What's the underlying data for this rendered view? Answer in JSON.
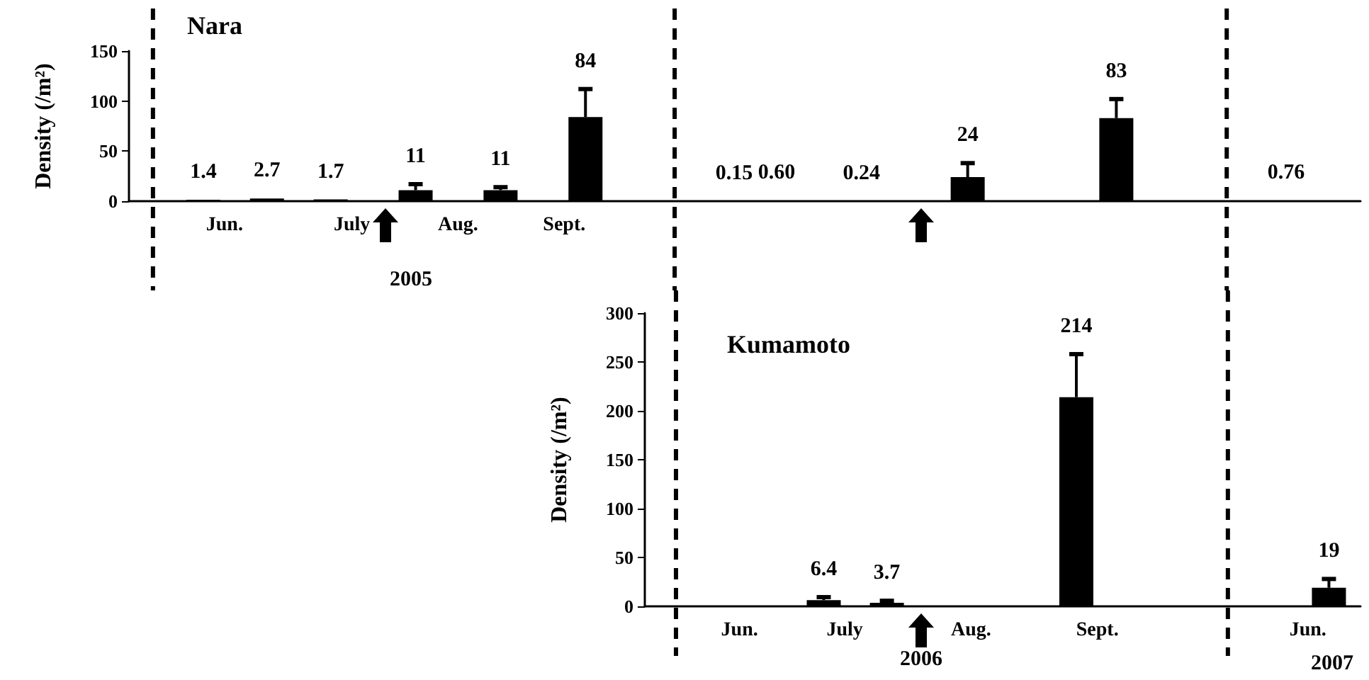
{
  "chart_data": [
    {
      "type": "bar",
      "title": "Nara",
      "ylabel": "Density (/m²)",
      "color": "#000000",
      "categories": [
        null,
        null,
        null,
        null,
        "Jun.",
        null,
        null,
        null,
        null,
        null,
        "July",
        null,
        null,
        null,
        null,
        "Aug.",
        null,
        null,
        null,
        null,
        "Sept.",
        null,
        null,
        null,
        null,
        null,
        null,
        null,
        null,
        null,
        null,
        null,
        null,
        null,
        null,
        null,
        null,
        null,
        null,
        null,
        null,
        null,
        null,
        null,
        null,
        null,
        null,
        null,
        null,
        null,
        null,
        null,
        null,
        null,
        null,
        null,
        null,
        null
      ],
      "values": [
        null,
        null,
        null,
        1.4,
        null,
        null,
        2.7,
        null,
        null,
        1.7,
        null,
        null,
        null,
        11,
        null,
        null,
        null,
        11,
        null,
        null,
        null,
        84,
        null,
        null,
        null,
        null,
        null,
        null,
        0.15,
        null,
        0.6,
        null,
        null,
        null,
        0.24,
        null,
        null,
        null,
        null,
        24,
        null,
        null,
        null,
        null,
        null,
        null,
        83,
        null,
        null,
        null,
        null,
        null,
        null,
        null,
        0.76,
        null,
        null,
        null
      ],
      "errors": [
        null,
        null,
        null,
        null,
        null,
        null,
        null,
        null,
        null,
        null,
        null,
        null,
        null,
        6,
        null,
        null,
        null,
        3,
        null,
        null,
        null,
        28,
        null,
        null,
        null,
        null,
        null,
        null,
        null,
        null,
        null,
        null,
        null,
        null,
        null,
        null,
        null,
        null,
        null,
        14,
        null,
        null,
        null,
        null,
        null,
        null,
        19,
        null,
        null,
        null,
        null,
        null,
        null,
        null,
        null,
        null,
        null,
        null
      ],
      "value_labels": [
        null,
        null,
        null,
        "1.4",
        null,
        null,
        "2.7",
        null,
        null,
        "1.7",
        null,
        null,
        null,
        "11",
        null,
        null,
        null,
        "11",
        null,
        null,
        null,
        "84",
        null,
        null,
        null,
        null,
        null,
        null,
        "0.15",
        null,
        "0.60",
        null,
        null,
        null,
        "0.24",
        null,
        null,
        null,
        null,
        "24",
        null,
        null,
        null,
        null,
        null,
        null,
        "83",
        null,
        null,
        null,
        null,
        null,
        null,
        null,
        "0.76",
        null,
        null,
        null
      ],
      "ylim": [
        0,
        150
      ],
      "yticks": [
        0,
        50,
        100,
        150
      ],
      "annotations": [
        "2005"
      ]
    },
    {
      "type": "bar",
      "title": "Kumamoto",
      "ylabel": "Density (/m²)",
      "color": "#000000",
      "categories": [
        null,
        null,
        null,
        null,
        "Jun.",
        null,
        null,
        null,
        null,
        "July",
        null,
        null,
        null,
        null,
        null,
        "Aug.",
        null,
        null,
        null,
        null,
        null,
        "Sept.",
        null,
        null,
        null,
        null,
        null,
        null,
        null,
        null,
        null,
        "Jun.",
        null,
        null
      ],
      "values": [
        null,
        null,
        null,
        null,
        null,
        null,
        null,
        null,
        6.4,
        null,
        null,
        3.7,
        null,
        null,
        null,
        null,
        null,
        null,
        null,
        null,
        214,
        null,
        null,
        null,
        null,
        null,
        null,
        null,
        null,
        null,
        null,
        null,
        19,
        null
      ],
      "errors": [
        null,
        null,
        null,
        null,
        null,
        null,
        null,
        null,
        3,
        null,
        null,
        2,
        null,
        null,
        null,
        null,
        null,
        null,
        null,
        null,
        44,
        null,
        null,
        null,
        null,
        null,
        null,
        null,
        null,
        null,
        null,
        null,
        9,
        null
      ],
      "value_labels": [
        null,
        null,
        null,
        null,
        null,
        null,
        null,
        null,
        "6.4",
        null,
        null,
        "3.7",
        null,
        null,
        null,
        null,
        null,
        null,
        null,
        null,
        "214",
        null,
        null,
        null,
        null,
        null,
        null,
        null,
        null,
        null,
        null,
        null,
        "19",
        null
      ],
      "ylim": [
        0,
        300
      ],
      "yticks": [
        0,
        50,
        100,
        150,
        200,
        250,
        300
      ],
      "annotations": [
        "2006",
        "2007"
      ]
    }
  ]
}
